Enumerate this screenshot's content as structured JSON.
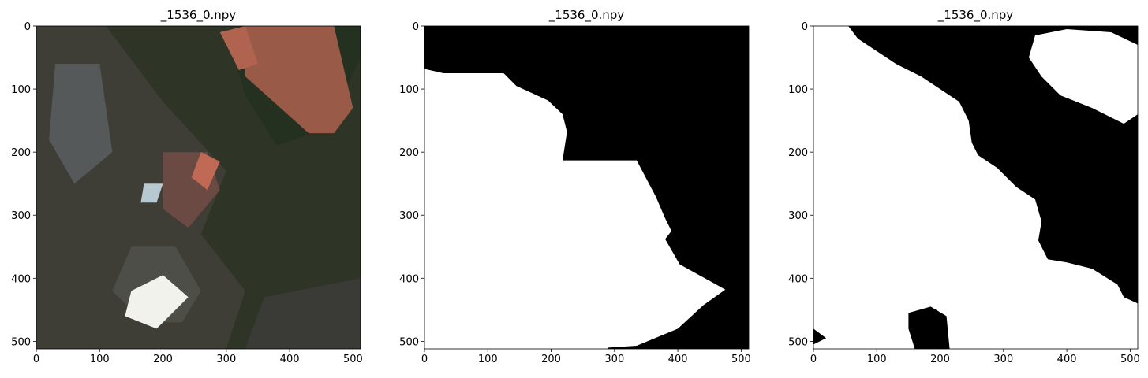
{
  "chart_data": [
    {
      "type": "image",
      "title": "_1536_0.npy",
      "xlim": [
        0,
        512
      ],
      "ylim": [
        512,
        0
      ],
      "xticks": [
        0,
        100,
        200,
        300,
        400,
        500
      ],
      "yticks": [
        0,
        100,
        200,
        300,
        400,
        500
      ]
    },
    {
      "type": "image",
      "title": "_1536_0.npy",
      "xlim": [
        0,
        512
      ],
      "ylim": [
        512,
        0
      ],
      "xticks": [
        0,
        100,
        200,
        300,
        400,
        500
      ],
      "yticks": [
        0,
        100,
        200,
        300,
        400,
        500
      ]
    },
    {
      "type": "image",
      "title": "_1536_0.npy",
      "xlim": [
        0,
        512
      ],
      "ylim": [
        512,
        0
      ],
      "xticks": [
        0,
        100,
        200,
        300,
        400,
        500
      ],
      "yticks": [
        0,
        100,
        200,
        300,
        400,
        500
      ]
    }
  ]
}
